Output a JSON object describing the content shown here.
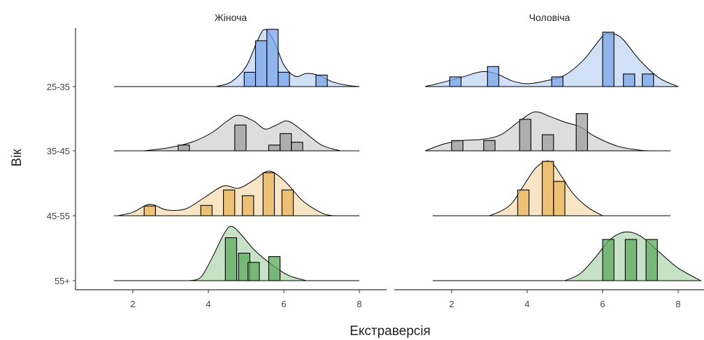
{
  "chart_data": {
    "type": "ridgeline",
    "xlabel": "Екстраверсія",
    "ylabel": "Вік",
    "xlim": [
      1.5,
      8
    ],
    "xticks": [
      2,
      4,
      6,
      8
    ],
    "panels": [
      "Жіноча",
      "Чоловіча"
    ],
    "age_groups": [
      "25-35",
      "35-45",
      "45-55",
      "55+"
    ],
    "colors": {
      "25-35": "#7aa6e8",
      "35-45": "#9e9e9e",
      "45-55": "#e8b45a",
      "55+": "#5ca85c"
    },
    "series": [
      {
        "panel": "Жіноча",
        "group": "25-35",
        "range": [
          1.5,
          8.0
        ],
        "density": [
          [
            4.2,
            0.0
          ],
          [
            4.6,
            0.08
          ],
          [
            5.0,
            0.35
          ],
          [
            5.3,
            0.8
          ],
          [
            5.5,
            1.0
          ],
          [
            5.75,
            0.78
          ],
          [
            6.0,
            0.38
          ],
          [
            6.3,
            0.18
          ],
          [
            6.6,
            0.23
          ],
          [
            6.9,
            0.2
          ],
          [
            7.3,
            0.08
          ],
          [
            7.7,
            0.02
          ],
          [
            8.0,
            0.0
          ]
        ],
        "bars": [
          [
            5.1,
            0.25
          ],
          [
            5.4,
            0.8
          ],
          [
            5.7,
            1.0
          ],
          [
            6.0,
            0.25
          ],
          [
            6.3,
            0.0
          ],
          [
            6.6,
            0.0
          ],
          [
            7.0,
            0.2
          ]
        ]
      },
      {
        "panel": "Жіноча",
        "group": "35-45",
        "range": [
          1.5,
          8.0
        ],
        "density": [
          [
            2.3,
            0.0
          ],
          [
            3.0,
            0.06
          ],
          [
            3.6,
            0.16
          ],
          [
            4.1,
            0.32
          ],
          [
            4.5,
            0.52
          ],
          [
            4.8,
            0.62
          ],
          [
            5.2,
            0.52
          ],
          [
            5.5,
            0.38
          ],
          [
            5.8,
            0.45
          ],
          [
            6.1,
            0.52
          ],
          [
            6.5,
            0.35
          ],
          [
            7.0,
            0.1
          ],
          [
            7.5,
            0.0
          ]
        ],
        "bars": [
          [
            3.35,
            0.1
          ],
          [
            3.65,
            0.0
          ],
          [
            4.85,
            0.45
          ],
          [
            5.45,
            0.0
          ],
          [
            5.75,
            0.1
          ],
          [
            6.05,
            0.3
          ],
          [
            6.35,
            0.15
          ]
        ]
      },
      {
        "panel": "Жіноча",
        "group": "45-55",
        "range": [
          1.5,
          8.0
        ],
        "density": [
          [
            1.6,
            0.0
          ],
          [
            2.0,
            0.06
          ],
          [
            2.45,
            0.2
          ],
          [
            2.9,
            0.1
          ],
          [
            3.4,
            0.12
          ],
          [
            3.9,
            0.32
          ],
          [
            4.4,
            0.52
          ],
          [
            4.8,
            0.48
          ],
          [
            5.2,
            0.62
          ],
          [
            5.6,
            0.78
          ],
          [
            6.0,
            0.62
          ],
          [
            6.5,
            0.26
          ],
          [
            7.0,
            0.05
          ],
          [
            7.3,
            0.0
          ]
        ],
        "bars": [
          [
            2.45,
            0.17
          ],
          [
            3.05,
            0.0
          ],
          [
            3.4,
            0.0
          ],
          [
            3.95,
            0.18
          ],
          [
            4.55,
            0.45
          ],
          [
            5.05,
            0.35
          ],
          [
            5.6,
            0.75
          ],
          [
            6.1,
            0.45
          ]
        ]
      },
      {
        "panel": "Жіноча",
        "group": "55+",
        "range": [
          1.5,
          8.0
        ],
        "density": [
          [
            3.5,
            0.0
          ],
          [
            3.8,
            0.06
          ],
          [
            4.1,
            0.4
          ],
          [
            4.4,
            0.8
          ],
          [
            4.6,
            0.95
          ],
          [
            4.85,
            0.82
          ],
          [
            5.2,
            0.55
          ],
          [
            5.6,
            0.32
          ],
          [
            6.1,
            0.1
          ],
          [
            6.6,
            0.0
          ]
        ],
        "bars": [
          [
            4.6,
            0.75
          ],
          [
            4.95,
            0.48
          ],
          [
            5.2,
            0.32
          ],
          [
            5.5,
            0.0
          ],
          [
            5.75,
            0.42
          ]
        ]
      },
      {
        "panel": "Чоловіча",
        "group": "25-35",
        "range": [
          1.5,
          7.8
        ],
        "density": [
          [
            1.3,
            0.0
          ],
          [
            1.8,
            0.08
          ],
          [
            2.3,
            0.17
          ],
          [
            2.8,
            0.26
          ],
          [
            3.2,
            0.22
          ],
          [
            3.6,
            0.1
          ],
          [
            4.0,
            0.05
          ],
          [
            4.5,
            0.1
          ],
          [
            5.0,
            0.2
          ],
          [
            5.5,
            0.47
          ],
          [
            6.0,
            0.88
          ],
          [
            6.2,
            0.92
          ],
          [
            6.5,
            0.85
          ],
          [
            7.0,
            0.45
          ],
          [
            7.5,
            0.15
          ],
          [
            8.0,
            0.0
          ]
        ],
        "bars": [
          [
            2.1,
            0.17
          ],
          [
            2.6,
            0.0
          ],
          [
            3.1,
            0.35
          ],
          [
            3.6,
            0.0
          ],
          [
            4.2,
            0.0
          ],
          [
            4.8,
            0.17
          ],
          [
            6.15,
            0.95
          ],
          [
            6.7,
            0.22
          ],
          [
            7.2,
            0.22
          ]
        ]
      },
      {
        "panel": "Чоловіча",
        "group": "35-45",
        "range": [
          1.5,
          7.8
        ],
        "density": [
          [
            1.3,
            0.0
          ],
          [
            1.8,
            0.12
          ],
          [
            2.3,
            0.18
          ],
          [
            2.8,
            0.2
          ],
          [
            3.3,
            0.28
          ],
          [
            3.8,
            0.52
          ],
          [
            4.2,
            0.68
          ],
          [
            4.6,
            0.6
          ],
          [
            5.0,
            0.5
          ],
          [
            5.4,
            0.42
          ],
          [
            5.8,
            0.25
          ],
          [
            6.4,
            0.08
          ],
          [
            7.0,
            0.01
          ],
          [
            7.3,
            0.0
          ]
        ],
        "bars": [
          [
            2.15,
            0.18
          ],
          [
            2.6,
            0.0
          ],
          [
            3.0,
            0.18
          ],
          [
            3.4,
            0.0
          ],
          [
            3.95,
            0.55
          ],
          [
            4.55,
            0.28
          ],
          [
            5.05,
            0.0
          ],
          [
            5.45,
            0.65
          ]
        ]
      },
      {
        "panel": "Чоловіча",
        "group": "45-55",
        "range": [
          1.5,
          7.8
        ],
        "density": [
          [
            3.0,
            0.0
          ],
          [
            3.3,
            0.08
          ],
          [
            3.6,
            0.22
          ],
          [
            3.9,
            0.52
          ],
          [
            4.25,
            0.85
          ],
          [
            4.6,
            0.95
          ],
          [
            4.9,
            0.7
          ],
          [
            5.2,
            0.4
          ],
          [
            5.6,
            0.15
          ],
          [
            6.0,
            0.0
          ]
        ],
        "bars": [
          [
            3.9,
            0.45
          ],
          [
            4.55,
            0.95
          ],
          [
            4.85,
            0.6
          ],
          [
            5.2,
            0.0
          ]
        ]
      },
      {
        "panel": "Чоловіча",
        "group": "55+",
        "range": [
          1.5,
          7.8
        ],
        "density": [
          [
            5.0,
            0.0
          ],
          [
            5.4,
            0.12
          ],
          [
            5.8,
            0.4
          ],
          [
            6.2,
            0.72
          ],
          [
            6.6,
            0.85
          ],
          [
            7.0,
            0.78
          ],
          [
            7.5,
            0.5
          ],
          [
            8.0,
            0.22
          ],
          [
            8.6,
            0.0
          ]
        ],
        "bars": [
          [
            6.15,
            0.72
          ],
          [
            6.45,
            0.0
          ],
          [
            6.75,
            0.72
          ],
          [
            7.05,
            0.0
          ],
          [
            7.3,
            0.72
          ]
        ]
      }
    ]
  }
}
